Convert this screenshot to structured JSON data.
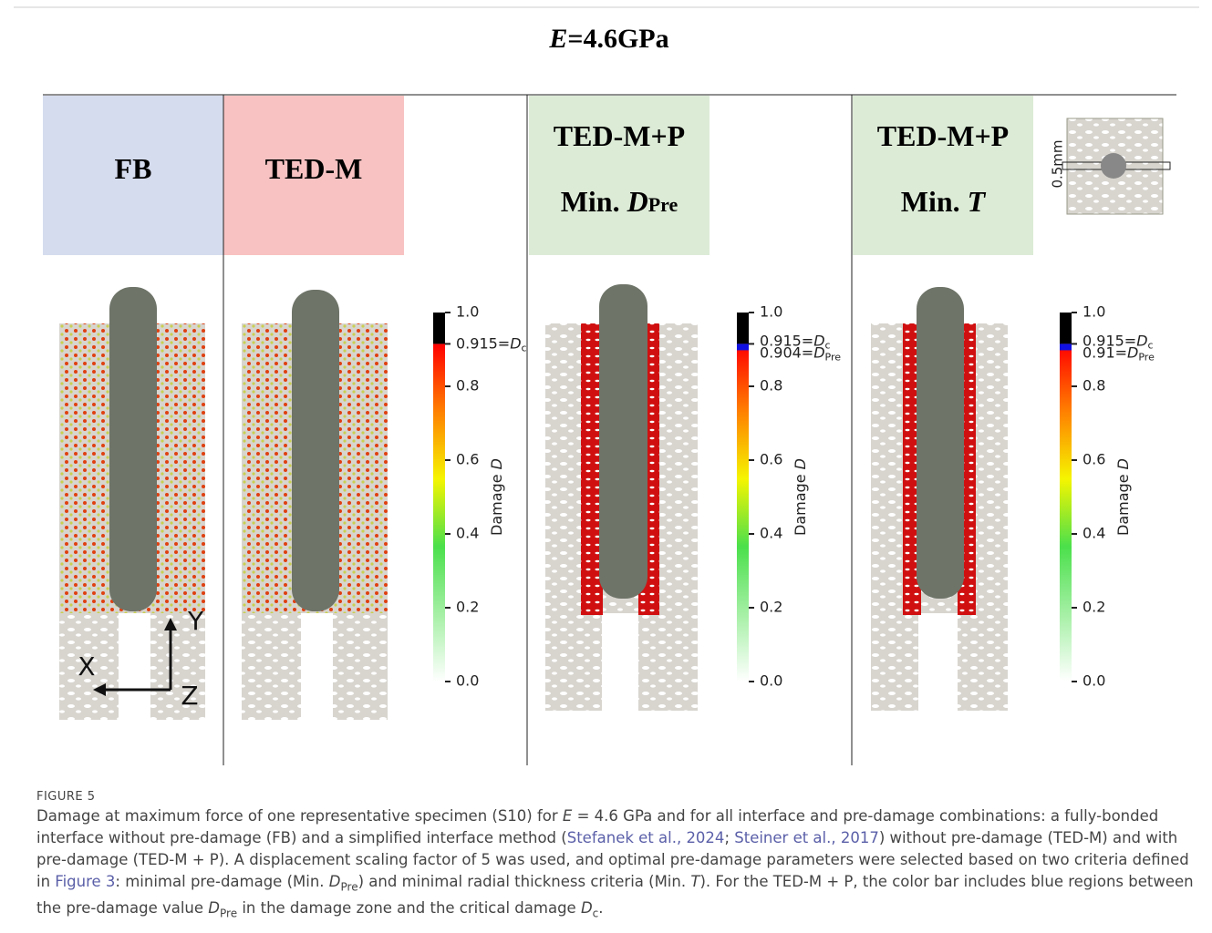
{
  "figure": {
    "title": {
      "var": "E",
      "text": "=4.6GPa"
    },
    "panels": [
      {
        "title": "FB"
      },
      {
        "title": "TED-M"
      },
      {
        "title": "TED-M+P",
        "subtitle": {
          "text": "Min. ",
          "var": "D",
          "sub": "Pre"
        }
      },
      {
        "title": "TED-M+P",
        "subtitle": {
          "text": "Min. ",
          "var": "T"
        }
      }
    ],
    "axes": {
      "x": "X",
      "y": "Y",
      "z": "Z"
    },
    "inset_label": "0.5mm",
    "colorbars": [
      {
        "ticks": [
          "1.0",
          "0.8",
          "0.6",
          "0.4",
          "0.2",
          "0.0"
        ],
        "critical": {
          "text": "0.915=",
          "var": "D",
          "sub": "c"
        },
        "label": {
          "text": "Damage ",
          "var": "D"
        }
      },
      {
        "ticks": [
          "1.0",
          "0.8",
          "0.6",
          "0.4",
          "0.2",
          "0.0"
        ],
        "critical": {
          "text": "0.915=",
          "var": "D",
          "sub": "c"
        },
        "pre": {
          "text": "0.904=",
          "var": "D",
          "sub": "Pre"
        },
        "label": {
          "text": "Damage ",
          "var": "D"
        }
      },
      {
        "ticks": [
          "1.0",
          "0.8",
          "0.6",
          "0.4",
          "0.2",
          "0.0"
        ],
        "critical": {
          "text": "0.915=",
          "var": "D",
          "sub": "c"
        },
        "pre": {
          "text": "0.91=",
          "var": "D",
          "sub": "Pre"
        },
        "label": {
          "text": "Damage ",
          "var": "D"
        }
      }
    ]
  },
  "caption": {
    "label": "FIGURE 5",
    "segments": [
      {
        "text": "Damage at maximum force of one representative specimen (S10) for ",
        "kind": "plain"
      },
      {
        "text": "E",
        "kind": "italic"
      },
      {
        "text": " = 4.6 GPa and for all interface and pre-damage combinations: a fully-bonded interface without pre-damage (FB) and a simplified interface method (",
        "kind": "plain"
      },
      {
        "text": "Stefanek et al., 2024",
        "kind": "link"
      },
      {
        "text": "; ",
        "kind": "plain"
      },
      {
        "text": "Steiner et al., 2017",
        "kind": "link"
      },
      {
        "text": ") without pre-damage (TED-M) and with pre-damage (TED-M + P). A displacement scaling factor of 5 was used, and optimal pre-damage parameters were selected based on two criteria defined in ",
        "kind": "plain"
      },
      {
        "text": "Figure 3",
        "kind": "link"
      },
      {
        "text": ": minimal pre-damage (Min. ",
        "kind": "plain"
      },
      {
        "text": "D",
        "kind": "italic"
      },
      {
        "text": "Pre",
        "kind": "sub"
      },
      {
        "text": ") and minimal radial thickness criteria (Min. ",
        "kind": "plain"
      },
      {
        "text": "T",
        "kind": "italic"
      },
      {
        "text": "). For the TED-M + P, the color bar includes blue regions between the pre-damage value ",
        "kind": "plain"
      },
      {
        "text": "D",
        "kind": "italic"
      },
      {
        "text": "Pre",
        "kind": "sub"
      },
      {
        "text": " in the damage zone and the critical damage ",
        "kind": "plain"
      },
      {
        "text": "D",
        "kind": "italic"
      },
      {
        "text": "c",
        "kind": "sub"
      },
      {
        "text": ".",
        "kind": "plain"
      }
    ]
  }
}
